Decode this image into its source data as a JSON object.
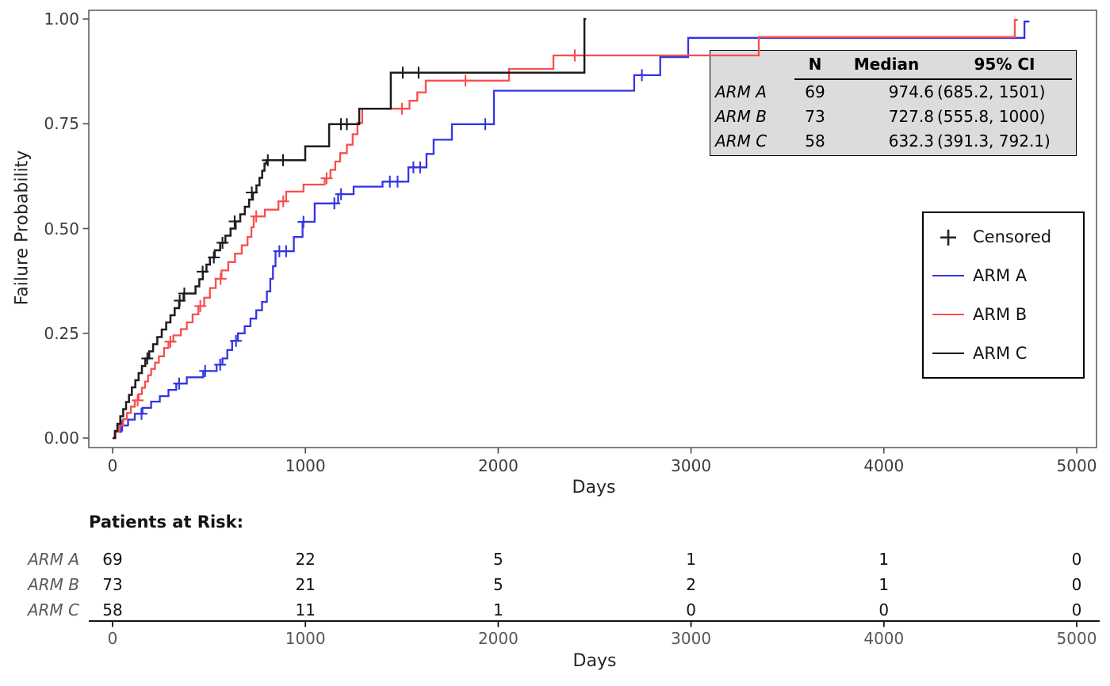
{
  "chart_data": {
    "type": "line",
    "subtype": "kaplan-meier-step",
    "title": "",
    "xlabel": "Days",
    "ylabel": "Failure Probability",
    "xlim": [
      0,
      5000
    ],
    "ylim": [
      0,
      1.0
    ],
    "grid": false,
    "x_ticks": [
      0,
      1000,
      2000,
      3000,
      4000,
      5000
    ],
    "x_tick_labels": [
      "0",
      "1000",
      "2000",
      "3000",
      "4000",
      "5000"
    ],
    "y_ticks": [
      0.0,
      0.25,
      0.5,
      0.75,
      1.0
    ],
    "y_tick_labels": [
      "0.00",
      "0.25",
      "0.50",
      "0.75",
      "1.00"
    ],
    "series": [
      {
        "name": "ARM A",
        "color": "#3434e4",
        "steps": [
          [
            0,
            0
          ],
          [
            15,
            0.015
          ],
          [
            45,
            0.03
          ],
          [
            80,
            0.044
          ],
          [
            115,
            0.058
          ],
          [
            155,
            0.072
          ],
          [
            200,
            0.087
          ],
          [
            245,
            0.1
          ],
          [
            290,
            0.115
          ],
          [
            330,
            0.13
          ],
          [
            385,
            0.145
          ],
          [
            470,
            0.16
          ],
          [
            540,
            0.175
          ],
          [
            570,
            0.19
          ],
          [
            595,
            0.21
          ],
          [
            620,
            0.232
          ],
          [
            650,
            0.25
          ],
          [
            685,
            0.267
          ],
          [
            715,
            0.285
          ],
          [
            745,
            0.305
          ],
          [
            775,
            0.325
          ],
          [
            800,
            0.35
          ],
          [
            818,
            0.38
          ],
          [
            832,
            0.41
          ],
          [
            845,
            0.446
          ],
          [
            940,
            0.48
          ],
          [
            985,
            0.516
          ],
          [
            1048,
            0.56
          ],
          [
            1170,
            0.582
          ],
          [
            1250,
            0.6
          ],
          [
            1400,
            0.612
          ],
          [
            1534,
            0.646
          ],
          [
            1628,
            0.678
          ],
          [
            1665,
            0.712
          ],
          [
            1760,
            0.749
          ],
          [
            1978,
            0.829
          ],
          [
            2705,
            0.866
          ],
          [
            2840,
            0.909
          ],
          [
            2985,
            0.955
          ],
          [
            4729,
            0.994
          ]
        ],
        "end": 4755,
        "censors": [
          [
            50,
            0.03
          ],
          [
            150,
            0.058
          ],
          [
            345,
            0.13
          ],
          [
            480,
            0.16
          ],
          [
            558,
            0.175
          ],
          [
            640,
            0.232
          ],
          [
            865,
            0.446
          ],
          [
            900,
            0.446
          ],
          [
            990,
            0.516
          ],
          [
            1150,
            0.56
          ],
          [
            1185,
            0.582
          ],
          [
            1438,
            0.612
          ],
          [
            1478,
            0.612
          ],
          [
            1560,
            0.646
          ],
          [
            1595,
            0.646
          ],
          [
            1933,
            0.749
          ],
          [
            2745,
            0.866
          ]
        ]
      },
      {
        "name": "ARM B",
        "color": "#f94e4e",
        "steps": [
          [
            0,
            0
          ],
          [
            15,
            0.015
          ],
          [
            35,
            0.03
          ],
          [
            55,
            0.045
          ],
          [
            75,
            0.06
          ],
          [
            95,
            0.075
          ],
          [
            115,
            0.09
          ],
          [
            135,
            0.105
          ],
          [
            152,
            0.12
          ],
          [
            168,
            0.135
          ],
          [
            184,
            0.15
          ],
          [
            200,
            0.165
          ],
          [
            220,
            0.18
          ],
          [
            240,
            0.195
          ],
          [
            267,
            0.215
          ],
          [
            290,
            0.23
          ],
          [
            315,
            0.245
          ],
          [
            354,
            0.26
          ],
          [
            385,
            0.276
          ],
          [
            415,
            0.295
          ],
          [
            445,
            0.315
          ],
          [
            475,
            0.335
          ],
          [
            505,
            0.358
          ],
          [
            535,
            0.38
          ],
          [
            565,
            0.4
          ],
          [
            600,
            0.42
          ],
          [
            635,
            0.44
          ],
          [
            670,
            0.46
          ],
          [
            700,
            0.48
          ],
          [
            720,
            0.503
          ],
          [
            732,
            0.529
          ],
          [
            790,
            0.545
          ],
          [
            860,
            0.565
          ],
          [
            900,
            0.588
          ],
          [
            990,
            0.605
          ],
          [
            1100,
            0.62
          ],
          [
            1130,
            0.64
          ],
          [
            1155,
            0.66
          ],
          [
            1180,
            0.68
          ],
          [
            1215,
            0.7
          ],
          [
            1245,
            0.725
          ],
          [
            1270,
            0.752
          ],
          [
            1295,
            0.786
          ],
          [
            1540,
            0.805
          ],
          [
            1580,
            0.825
          ],
          [
            1624,
            0.853
          ],
          [
            2056,
            0.881
          ],
          [
            2286,
            0.913
          ],
          [
            3351,
            0.957
          ],
          [
            4679,
            0.998
          ]
        ],
        "end": 4695,
        "censors": [
          [
            130,
            0.09
          ],
          [
            300,
            0.23
          ],
          [
            455,
            0.315
          ],
          [
            560,
            0.38
          ],
          [
            745,
            0.529
          ],
          [
            885,
            0.565
          ],
          [
            1110,
            0.62
          ],
          [
            1501,
            0.786
          ],
          [
            1830,
            0.853
          ],
          [
            2397,
            0.913
          ]
        ]
      },
      {
        "name": "ARM C",
        "color": "#1c1c1c",
        "steps": [
          [
            0,
            0
          ],
          [
            12,
            0.017
          ],
          [
            25,
            0.034
          ],
          [
            40,
            0.052
          ],
          [
            55,
            0.069
          ],
          [
            70,
            0.086
          ],
          [
            85,
            0.103
          ],
          [
            100,
            0.121
          ],
          [
            118,
            0.138
          ],
          [
            135,
            0.155
          ],
          [
            152,
            0.172
          ],
          [
            170,
            0.19
          ],
          [
            190,
            0.207
          ],
          [
            210,
            0.224
          ],
          [
            232,
            0.241
          ],
          [
            255,
            0.259
          ],
          [
            278,
            0.276
          ],
          [
            300,
            0.293
          ],
          [
            322,
            0.31
          ],
          [
            345,
            0.328
          ],
          [
            368,
            0.345
          ],
          [
            430,
            0.362
          ],
          [
            450,
            0.379
          ],
          [
            468,
            0.397
          ],
          [
            487,
            0.414
          ],
          [
            505,
            0.431
          ],
          [
            530,
            0.448
          ],
          [
            558,
            0.466
          ],
          [
            585,
            0.483
          ],
          [
            612,
            0.5
          ],
          [
            638,
            0.517
          ],
          [
            662,
            0.534
          ],
          [
            686,
            0.552
          ],
          [
            708,
            0.569
          ],
          [
            728,
            0.586
          ],
          [
            746,
            0.603
          ],
          [
            762,
            0.621
          ],
          [
            776,
            0.638
          ],
          [
            788,
            0.655
          ],
          [
            798,
            0.663
          ],
          [
            999,
            0.696
          ],
          [
            1123,
            0.749
          ],
          [
            1279,
            0.786
          ],
          [
            1443,
            0.872
          ],
          [
            2447,
            1.0
          ]
        ],
        "end": 2456,
        "censors": [
          [
            180,
            0.19
          ],
          [
            348,
            0.328
          ],
          [
            372,
            0.345
          ],
          [
            467,
            0.397
          ],
          [
            525,
            0.431
          ],
          [
            570,
            0.466
          ],
          [
            633,
            0.517
          ],
          [
            722,
            0.586
          ],
          [
            805,
            0.663
          ],
          [
            884,
            0.663
          ],
          [
            1184,
            0.749
          ],
          [
            1215,
            0.749
          ],
          [
            1505,
            0.872
          ],
          [
            1587,
            0.872
          ]
        ]
      }
    ]
  },
  "stats_table": {
    "headers": [
      "N",
      "Median",
      "95% CI"
    ],
    "rows": [
      {
        "arm": "ARM A",
        "n": "69",
        "median": "974.6",
        "ci": "(685.2, 1501)"
      },
      {
        "arm": "ARM B",
        "n": "73",
        "median": "727.8",
        "ci": "(555.8, 1000)"
      },
      {
        "arm": "ARM C",
        "n": "58",
        "median": "632.3",
        "ci": "(391.3, 792.1)"
      }
    ]
  },
  "legend": {
    "censored_label": "Censored",
    "censored_symbol": "+",
    "items": [
      {
        "label": "ARM A",
        "color": "#3434e4"
      },
      {
        "label": "ARM B",
        "color": "#f94e4e"
      },
      {
        "label": "ARM C",
        "color": "#1c1c1c"
      }
    ]
  },
  "risk_table": {
    "title": "Patients at Risk:",
    "xlabel": "Days",
    "x_tick_labels": [
      "0",
      "1000",
      "2000",
      "3000",
      "4000",
      "5000"
    ],
    "arms": [
      {
        "label": "ARM A",
        "counts": [
          "69",
          "22",
          "5",
          "1",
          "1",
          "0"
        ]
      },
      {
        "label": "ARM B",
        "counts": [
          "73",
          "21",
          "5",
          "2",
          "1",
          "0"
        ]
      },
      {
        "label": "ARM C",
        "counts": [
          "58",
          "11",
          "1",
          "0",
          "0",
          "0"
        ]
      }
    ]
  }
}
